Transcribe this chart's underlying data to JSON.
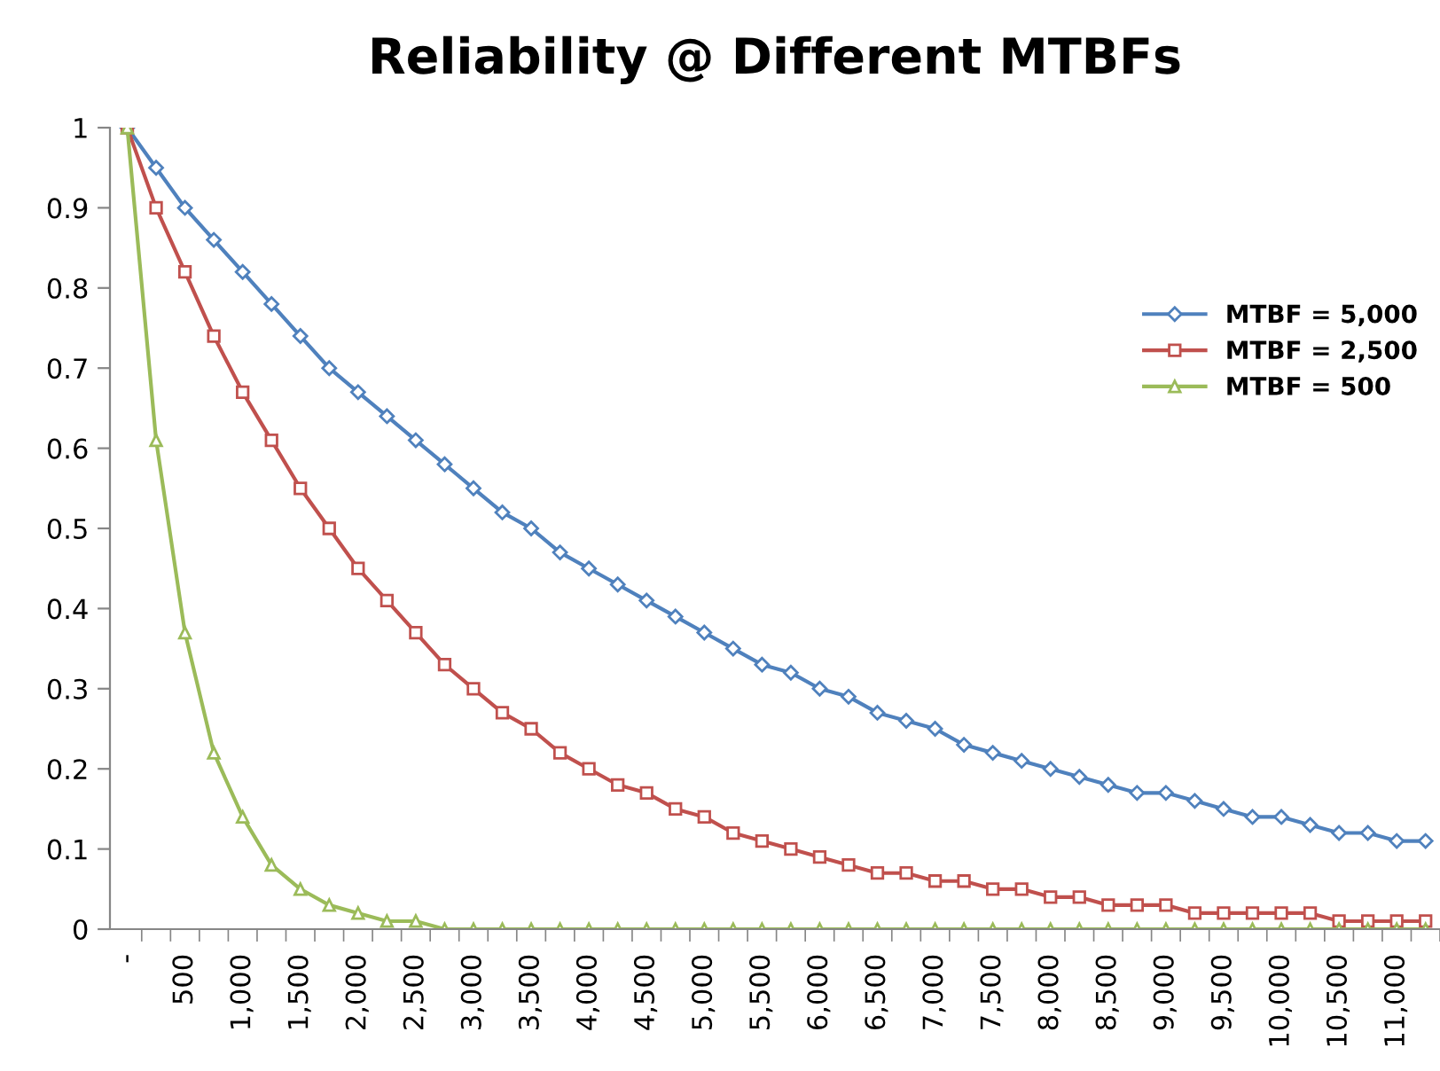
{
  "chart_data": {
    "type": "line",
    "title": "Reliability @ Different MTBFs",
    "categories": [
      "-",
      null,
      "500",
      null,
      "1,000",
      null,
      "1,500",
      null,
      "2,000",
      null,
      "2,500",
      null,
      "3,000",
      null,
      "3,500",
      null,
      "4,000",
      null,
      "4,500",
      null,
      "5,000",
      null,
      "5,500",
      null,
      "6,000",
      null,
      "6,500",
      null,
      "7,000",
      null,
      "7,500",
      null,
      "8,000",
      null,
      "8,500",
      null,
      "9,000",
      null,
      "9,500",
      null,
      "10,000",
      null,
      "10,500",
      null,
      "11,000",
      null
    ],
    "series": [
      {
        "name": "MTBF = 5,000",
        "color": "#4f81bd",
        "marker": "diamond",
        "values": [
          1.0,
          0.95,
          0.9,
          0.86,
          0.82,
          0.78,
          0.74,
          0.7,
          0.67,
          0.64,
          0.61,
          0.58,
          0.55,
          0.52,
          0.5,
          0.47,
          0.45,
          0.43,
          0.41,
          0.39,
          0.37,
          0.35,
          0.33,
          0.32,
          0.3,
          0.29,
          0.27,
          0.26,
          0.25,
          0.23,
          0.22,
          0.21,
          0.2,
          0.19,
          0.18,
          0.17,
          0.17,
          0.16,
          0.15,
          0.14,
          0.14,
          0.13,
          0.12,
          0.12,
          0.11,
          0.11
        ]
      },
      {
        "name": "MTBF = 2,500",
        "color": "#c0504d",
        "marker": "square",
        "values": [
          1.0,
          0.9,
          0.82,
          0.74,
          0.67,
          0.61,
          0.55,
          0.5,
          0.45,
          0.41,
          0.37,
          0.33,
          0.3,
          0.27,
          0.25,
          0.22,
          0.2,
          0.18,
          0.17,
          0.15,
          0.14,
          0.12,
          0.11,
          0.1,
          0.09,
          0.08,
          0.07,
          0.07,
          0.06,
          0.06,
          0.05,
          0.05,
          0.04,
          0.04,
          0.03,
          0.03,
          0.03,
          0.02,
          0.02,
          0.02,
          0.02,
          0.02,
          0.01,
          0.01,
          0.01,
          0.01
        ]
      },
      {
        "name": "MTBF = 500",
        "color": "#9bbb59",
        "marker": "triangle",
        "values": [
          1.0,
          0.61,
          0.37,
          0.22,
          0.14,
          0.08,
          0.05,
          0.03,
          0.02,
          0.01,
          0.01,
          0,
          0,
          0,
          0,
          0,
          0,
          0,
          0,
          0,
          0,
          0,
          0,
          0,
          0,
          0,
          0,
          0,
          0,
          0,
          0,
          0,
          0,
          0,
          0,
          0,
          0,
          0,
          0,
          0,
          0,
          0,
          0,
          0,
          0,
          0
        ]
      }
    ],
    "ylim": [
      0,
      1
    ],
    "yticks": [
      0,
      0.1,
      0.2,
      0.3,
      0.4,
      0.5,
      0.6,
      0.7,
      0.8,
      0.9,
      1
    ],
    "grid": false,
    "legend": "right",
    "line_style": "solid"
  }
}
